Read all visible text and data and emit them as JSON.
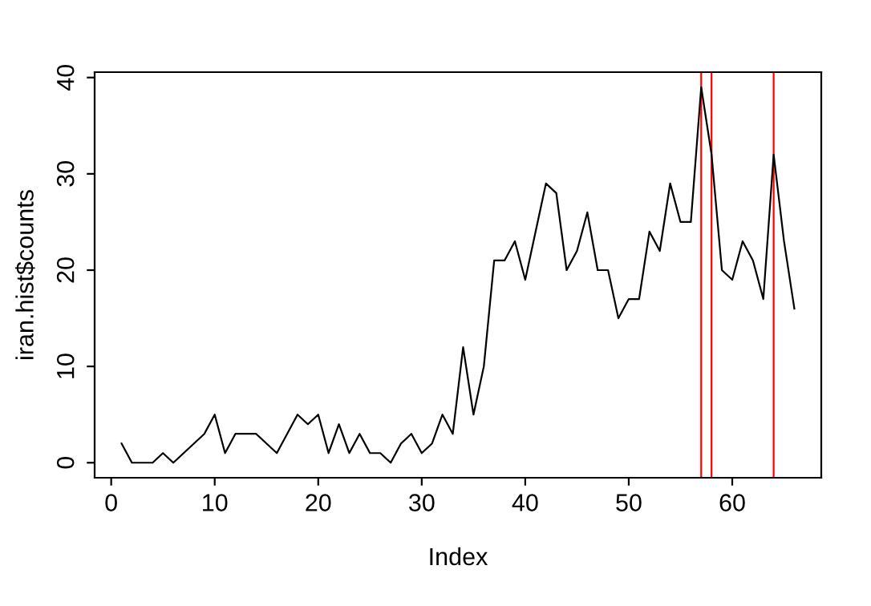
{
  "chart_data": {
    "type": "line",
    "xlabel": "Index",
    "ylabel": "iran.hist$counts",
    "x": [
      1,
      2,
      3,
      4,
      5,
      6,
      7,
      8,
      9,
      10,
      11,
      12,
      13,
      14,
      15,
      16,
      17,
      18,
      19,
      20,
      21,
      22,
      23,
      24,
      25,
      26,
      27,
      28,
      29,
      30,
      31,
      32,
      33,
      34,
      35,
      36,
      37,
      38,
      39,
      40,
      41,
      42,
      43,
      44,
      45,
      46,
      47,
      48,
      49,
      50,
      51,
      52,
      53,
      54,
      55,
      56,
      57,
      58,
      59,
      60,
      61,
      62,
      63,
      64,
      65,
      66
    ],
    "series": [
      {
        "color": "#000000",
        "values": [
          2,
          0,
          0,
          0,
          1,
          0,
          1,
          2,
          3,
          5,
          1,
          3,
          3,
          3,
          2,
          1,
          3,
          5,
          4,
          5,
          1,
          4,
          1,
          3,
          1,
          1,
          0,
          2,
          3,
          1,
          2,
          5,
          3,
          12,
          5,
          10,
          21,
          21,
          23,
          19,
          24,
          29,
          28,
          20,
          22,
          26,
          20,
          20,
          15,
          17,
          17,
          24,
          22,
          29,
          25,
          25,
          39,
          32,
          20,
          19,
          23,
          21,
          17,
          32,
          23,
          16
        ]
      }
    ],
    "xlim": [
      -1.6,
      68.6
    ],
    "ylim": [
      -1.56,
      40.56
    ],
    "xticks": [
      0,
      10,
      20,
      30,
      40,
      50,
      60
    ],
    "yticks": [
      0,
      10,
      20,
      30,
      40
    ],
    "ref_lines": [
      {
        "axis": "x",
        "value": 57,
        "color": "#ff0000"
      },
      {
        "axis": "x",
        "value": 58,
        "color": "#ff0000"
      },
      {
        "axis": "x",
        "value": 64,
        "color": "#ff0000"
      }
    ],
    "grid": false,
    "legend": false,
    "marker": "none",
    "line_style": "solid"
  }
}
